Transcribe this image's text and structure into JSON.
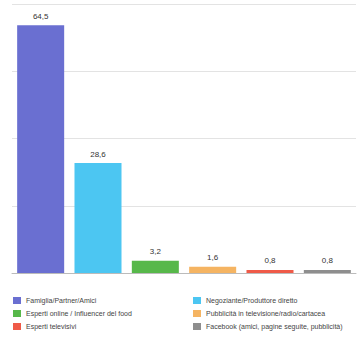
{
  "chart_data": {
    "type": "bar",
    "categories": [
      "Famiglia/Partner/Amici",
      "Negoziante/Produttore diretto",
      "Esperti online / Influencer del food",
      "Pubblicità in televisione/radio/cartacea",
      "Esperti televisivi",
      "Facebook (amici, pagine seguite, pubblicità)"
    ],
    "values": [
      64.5,
      28.6,
      3.2,
      1.6,
      0.8,
      0.8
    ],
    "value_labels": [
      "64,5",
      "28,6",
      "3,2",
      "1,6",
      "0,8",
      "0,8"
    ],
    "colors": [
      "#6a6fd1",
      "#4cc6f2",
      "#57b84a",
      "#f5b462",
      "#ef5a48",
      "#8e8e8e"
    ],
    "ylim": [
      0,
      70
    ],
    "yticks": [
      0,
      17.5,
      35,
      52.5,
      70
    ],
    "grid": true,
    "data_labels": true,
    "tick_labels": false,
    "legend": "bottom"
  }
}
